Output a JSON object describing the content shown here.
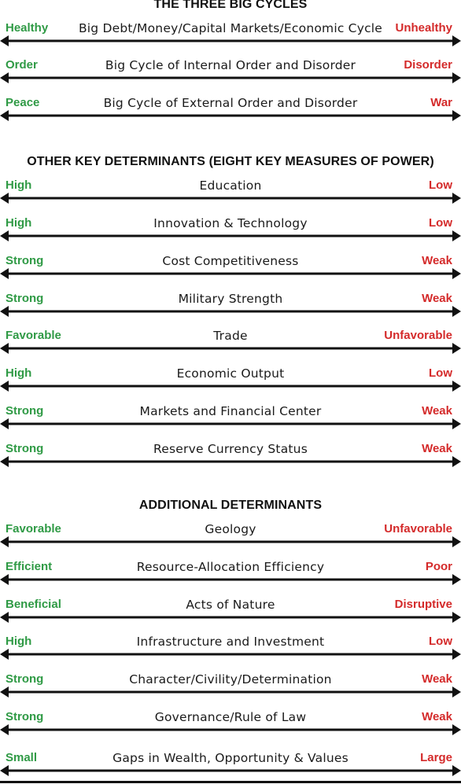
{
  "sections": [
    {
      "title": "THE THREE BIG CYCLES",
      "rows": [
        {
          "left": "Healthy",
          "center": "Big Debt/Money/Capital Markets/Economic Cycle",
          "right": "Unhealthy"
        },
        {
          "left": "Order",
          "center": "Big Cycle of Internal Order and Disorder",
          "right": "Disorder"
        },
        {
          "left": "Peace",
          "center": "Big Cycle of External Order and Disorder",
          "right": "War"
        }
      ]
    },
    {
      "title": "OTHER KEY DETERMINANTS (EIGHT KEY MEASURES OF POWER)",
      "rows": [
        {
          "left": "High",
          "center": "Education",
          "right": "Low"
        },
        {
          "left": "High",
          "center": "Innovation & Technology",
          "right": "Low"
        },
        {
          "left": "Strong",
          "center": "Cost Competitiveness",
          "right": "Weak"
        },
        {
          "left": "Strong",
          "center": "Military Strength",
          "right": "Weak"
        },
        {
          "left": "Favorable",
          "center": "Trade",
          "right": "Unfavorable"
        },
        {
          "left": "High",
          "center": "Economic Output",
          "right": "Low"
        },
        {
          "left": "Strong",
          "center": "Markets and Financial Center",
          "right": "Weak"
        },
        {
          "left": "Strong",
          "center": "Reserve Currency Status",
          "right": "Weak"
        }
      ]
    },
    {
      "title": "ADDITIONAL DETERMINANTS",
      "rows": [
        {
          "left": "Favorable",
          "center": "Geology",
          "right": "Unfavorable"
        },
        {
          "left": "Efficient",
          "center": "Resource-Allocation Efficiency",
          "right": "Poor"
        },
        {
          "left": "Beneficial",
          "center": "Acts of Nature",
          "right": "Disruptive"
        },
        {
          "left": "High",
          "center": "Infrastructure and Investment",
          "right": "Low"
        },
        {
          "left": "Strong",
          "center": "Character/Civility/Determination",
          "right": "Weak"
        },
        {
          "left": "Strong",
          "center": "Governance/Rule of Law",
          "right": "Weak"
        },
        {
          "left": "Small",
          "center": "Gaps in Wealth, Opportunity & Values",
          "right": "Large"
        }
      ]
    }
  ],
  "colors": {
    "positive": "#2f9a45",
    "negative": "#d42a2a",
    "arrow": "#111111"
  }
}
